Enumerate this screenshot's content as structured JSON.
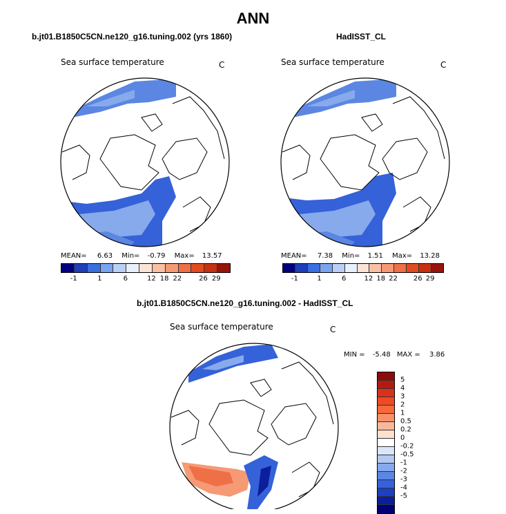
{
  "main_title": "ANN",
  "panels": [
    {
      "title": "b.jt01.B1850C5CN.ne120_g16.tuning.002 (yrs 1860)",
      "variable": "Sea surface temperature",
      "units": "C",
      "stats": {
        "mean_label": "MEAN=",
        "mean": "6.63",
        "min_label": "Min=",
        "min": "-0.79",
        "max_label": "Max=",
        "max": "13.57"
      }
    },
    {
      "title": "HadISST_CL",
      "variable": "Sea surface temperature",
      "units": "C",
      "stats": {
        "mean_label": "MEAN=",
        "mean": "7.38",
        "min_label": "Min=",
        "min": "1.51",
        "max_label": "Max=",
        "max": "13.28"
      }
    },
    {
      "title": "b.jt01.B1850C5CN.ne120_g16.tuning.002 - HadISST_CL",
      "variable": "Sea surface temperature",
      "units": "C",
      "stats": {
        "min_label": "MIN =",
        "min": "-5.48",
        "max_label": "MAX =",
        "max": "3.86"
      }
    }
  ],
  "chart_data": [
    {
      "type": "heatmap",
      "projection": "polar-stereographic-north",
      "title": "b.jt01.B1850C5CN.ne120_g16.tuning.002 (yrs 1860)",
      "field": "Sea surface temperature",
      "units": "C",
      "mean": 6.63,
      "min": -0.79,
      "max": 13.57,
      "colorbar_levels": [
        -1,
        1,
        6,
        12,
        18,
        22,
        26,
        29
      ],
      "colorbar_colors": [
        "#000080",
        "#1f3fb8",
        "#3a6fe0",
        "#7aa3f0",
        "#b9cff6",
        "#e8f0fb",
        "#fbe3d8",
        "#f9c0a4",
        "#f59a74",
        "#ef6f46",
        "#e24a22",
        "#c83012",
        "#98140a"
      ]
    },
    {
      "type": "heatmap",
      "projection": "polar-stereographic-north",
      "title": "HadISST_CL",
      "field": "Sea surface temperature",
      "units": "C",
      "mean": 7.38,
      "min": 1.51,
      "max": 13.28,
      "colorbar_levels": [
        -1,
        1,
        6,
        12,
        18,
        22,
        26,
        29
      ],
      "colorbar_colors": [
        "#000080",
        "#1f3fb8",
        "#3a6fe0",
        "#7aa3f0",
        "#b9cff6",
        "#e8f0fb",
        "#fbe3d8",
        "#f9c0a4",
        "#f59a74",
        "#ef6f46",
        "#e24a22",
        "#c83012",
        "#98140a"
      ]
    },
    {
      "type": "heatmap",
      "projection": "polar-stereographic-north",
      "title": "b.jt01.B1850C5CN.ne120_g16.tuning.002 - HadISST_CL",
      "field": "Sea surface temperature",
      "units": "C",
      "min": -5.48,
      "max": 3.86,
      "colorbar_levels": [
        "5",
        "4",
        "3",
        "2",
        "1",
        "0.5",
        "0.2",
        "0",
        "-0.2",
        "-0.5",
        "-1",
        "-2",
        "-3",
        "-4",
        "-5"
      ],
      "colorbar_colors": [
        "#8b0d0b",
        "#b51a10",
        "#d8321a",
        "#ef4a24",
        "#f5693a",
        "#f8906a",
        "#fbb898",
        "#fde0cf",
        "#ffffff",
        "#dbe6f8",
        "#b3caf2",
        "#87aaec",
        "#5b86e2",
        "#3562d8",
        "#1d3fc4",
        "#0b1e9c",
        "#000074"
      ]
    }
  ]
}
